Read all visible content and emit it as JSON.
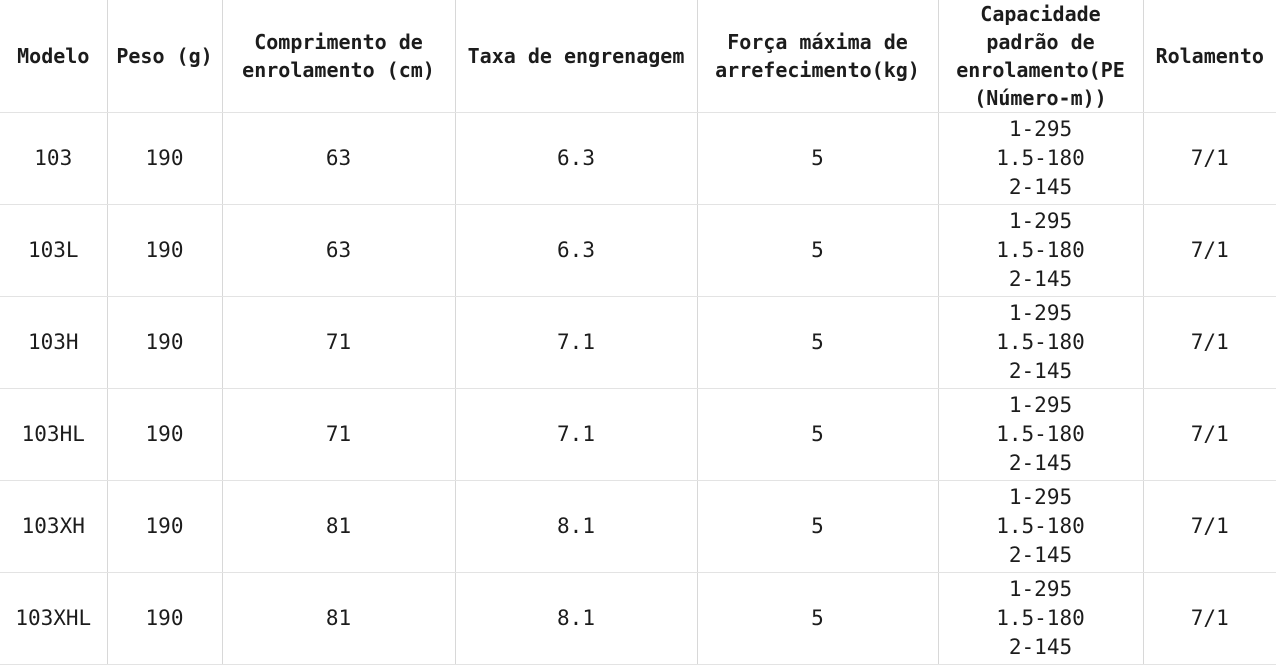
{
  "table": {
    "columns": [
      {
        "key": "modelo",
        "label": "Modelo"
      },
      {
        "key": "peso",
        "label": "Peso (g)"
      },
      {
        "key": "comprimento",
        "label": "Comprimento de\nenrolamento (cm)"
      },
      {
        "key": "taxa",
        "label": "Taxa de engrenagem"
      },
      {
        "key": "forca",
        "label": "Força máxima de\narrefecimento(kg)"
      },
      {
        "key": "capacidade",
        "label": "Capacidade\npadrão de\nenrolamento(PE\n(Número-m))"
      },
      {
        "key": "rolamento",
        "label": "Rolamento"
      }
    ],
    "rows": [
      {
        "modelo": "103",
        "peso": "190",
        "comprimento": "63",
        "taxa": "6.3",
        "forca": "5",
        "capacidade": "1-295\n1.5-180\n2-145",
        "rolamento": "7/1"
      },
      {
        "modelo": "103L",
        "peso": "190",
        "comprimento": "63",
        "taxa": "6.3",
        "forca": "5",
        "capacidade": "1-295\n1.5-180\n2-145",
        "rolamento": "7/1"
      },
      {
        "modelo": "103H",
        "peso": "190",
        "comprimento": "71",
        "taxa": "7.1",
        "forca": "5",
        "capacidade": "1-295\n1.5-180\n2-145",
        "rolamento": "7/1"
      },
      {
        "modelo": "103HL",
        "peso": "190",
        "comprimento": "71",
        "taxa": "7.1",
        "forca": "5",
        "capacidade": "1-295\n1.5-180\n2-145",
        "rolamento": "7/1"
      },
      {
        "modelo": "103XH",
        "peso": "190",
        "comprimento": "81",
        "taxa": "8.1",
        "forca": "5",
        "capacidade": "1-295\n1.5-180\n2-145",
        "rolamento": "7/1"
      },
      {
        "modelo": "103XHL",
        "peso": "190",
        "comprimento": "81",
        "taxa": "8.1",
        "forca": "5",
        "capacidade": "1-295\n1.5-180\n2-145",
        "rolamento": "7/1"
      }
    ]
  },
  "chart_data": {
    "type": "table",
    "columns": [
      "Modelo",
      "Peso (g)",
      "Comprimento de enrolamento (cm)",
      "Taxa de engrenagem",
      "Força máxima de arrefecimento(kg)",
      "Capacidade padrão de enrolamento(PE (Número-m))",
      "Rolamento"
    ],
    "rows": [
      [
        "103",
        190,
        63,
        6.3,
        5,
        "1-295 / 1.5-180 / 2-145",
        "7/1"
      ],
      [
        "103L",
        190,
        63,
        6.3,
        5,
        "1-295 / 1.5-180 / 2-145",
        "7/1"
      ],
      [
        "103H",
        190,
        71,
        7.1,
        5,
        "1-295 / 1.5-180 / 2-145",
        "7/1"
      ],
      [
        "103HL",
        190,
        71,
        7.1,
        5,
        "1-295 / 1.5-180 / 2-145",
        "7/1"
      ],
      [
        "103XH",
        190,
        81,
        8.1,
        5,
        "1-295 / 1.5-180 / 2-145",
        "7/1"
      ],
      [
        "103XHL",
        190,
        81,
        8.1,
        5,
        "1-295 / 1.5-180 / 2-145",
        "7/1"
      ]
    ]
  },
  "colors": {
    "text": "#1c1c1c",
    "border_vertical": "#d8d8d8",
    "border_horizontal": "#e3e3e3",
    "background": "#ffffff"
  }
}
